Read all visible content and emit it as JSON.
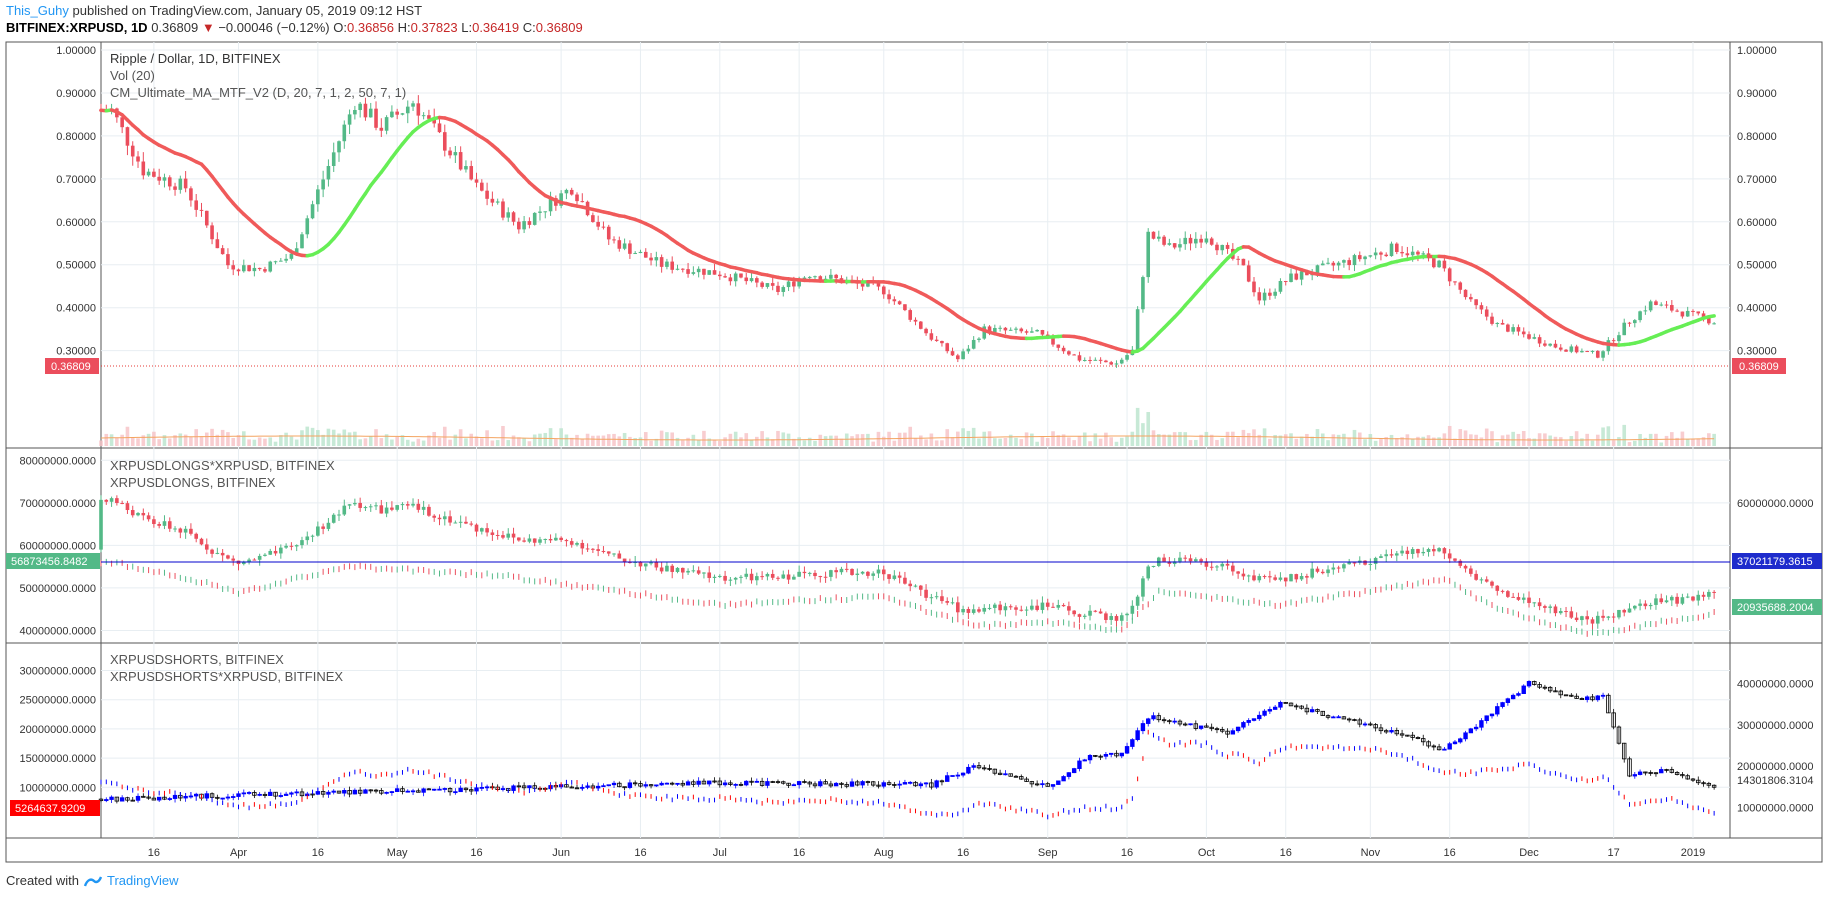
{
  "header": {
    "author": "This_Guhy",
    "published_text": "published on TradingView.com, January 05, 2019 09:12 HST",
    "symbol": "BITFINEX:XRPUSD, 1D",
    "last": "0.36809",
    "change": "−0.00046 (−0.12%)",
    "o_label": "O:",
    "o": "0.36856",
    "h_label": "H:",
    "h": "0.37823",
    "l_label": "L:",
    "l": "0.36419",
    "c_label": "C:",
    "c": "0.36809"
  },
  "footer": {
    "created_with": "Created with",
    "brand": "TradingView"
  },
  "colors": {
    "up": "#53b987",
    "down": "#eb4d5c",
    "ma_up": "#66ee55",
    "ma_down": "#f05a5a",
    "grid": "#e8eef2",
    "border": "#555555",
    "long_line": "#0000cc",
    "short_blue": "#0000ff",
    "short_red": "#ff0000"
  },
  "chart_data": [
    {
      "type": "candlestick",
      "title": "Ripple / Dollar, 1D, BITFINEX",
      "indicators": [
        "Vol (20)",
        "CM_Ultimate_MA_MTF_V2 (D, 20, 7, 1, 2, 50, 7, 1)"
      ],
      "y_ticks": [
        "1.00000",
        "0.90000",
        "0.80000",
        "0.70000",
        "0.60000",
        "0.50000",
        "0.40000",
        "0.30000"
      ],
      "ylim": [
        0.22,
        1.0
      ],
      "price_label": "0.36809",
      "x_ticks": [
        "16",
        "Apr",
        "16",
        "May",
        "16",
        "Jun",
        "16",
        "Jul",
        "16",
        "Aug",
        "16",
        "Sep",
        "16",
        "Oct",
        "16",
        "Nov",
        "16",
        "Dec",
        "17",
        "2019"
      ],
      "close_keypoints": [
        {
          "date": "2018-03-08",
          "close": 0.86
        },
        {
          "date": "2018-03-14",
          "close": 0.72
        },
        {
          "date": "2018-03-22",
          "close": 0.68
        },
        {
          "date": "2018-03-30",
          "close": 0.5
        },
        {
          "date": "2018-04-05",
          "close": 0.49
        },
        {
          "date": "2018-04-11",
          "close": 0.52
        },
        {
          "date": "2018-04-17",
          "close": 0.7
        },
        {
          "date": "2018-04-23",
          "close": 0.88
        },
        {
          "date": "2018-04-28",
          "close": 0.82
        },
        {
          "date": "2018-05-04",
          "close": 0.88
        },
        {
          "date": "2018-05-10",
          "close": 0.78
        },
        {
          "date": "2018-05-16",
          "close": 0.68
        },
        {
          "date": "2018-05-24",
          "close": 0.59
        },
        {
          "date": "2018-06-03",
          "close": 0.68
        },
        {
          "date": "2018-06-10",
          "close": 0.56
        },
        {
          "date": "2018-06-20",
          "close": 0.5
        },
        {
          "date": "2018-07-01",
          "close": 0.48
        },
        {
          "date": "2018-07-12",
          "close": 0.44
        },
        {
          "date": "2018-07-18",
          "close": 0.48
        },
        {
          "date": "2018-08-01",
          "close": 0.44
        },
        {
          "date": "2018-08-10",
          "close": 0.33
        },
        {
          "date": "2018-08-15",
          "close": 0.28
        },
        {
          "date": "2018-08-20",
          "close": 0.35
        },
        {
          "date": "2018-08-30",
          "close": 0.34
        },
        {
          "date": "2018-09-07",
          "close": 0.28
        },
        {
          "date": "2018-09-14",
          "close": 0.27
        },
        {
          "date": "2018-09-17",
          "close": 0.3
        },
        {
          "date": "2018-09-20",
          "close": 0.57
        },
        {
          "date": "2018-09-24",
          "close": 0.54
        },
        {
          "date": "2018-10-01",
          "close": 0.57
        },
        {
          "date": "2018-10-08",
          "close": 0.49
        },
        {
          "date": "2018-10-11",
          "close": 0.42
        },
        {
          "date": "2018-10-17",
          "close": 0.47
        },
        {
          "date": "2018-11-06",
          "close": 0.54
        },
        {
          "date": "2018-11-14",
          "close": 0.5
        },
        {
          "date": "2018-11-20",
          "close": 0.41
        },
        {
          "date": "2018-11-25",
          "close": 0.36
        },
        {
          "date": "2018-12-06",
          "close": 0.31
        },
        {
          "date": "2018-12-14",
          "close": 0.29
        },
        {
          "date": "2018-12-20",
          "close": 0.37
        },
        {
          "date": "2018-12-24",
          "close": 0.41
        },
        {
          "date": "2019-01-05",
          "close": 0.368
        }
      ]
    },
    {
      "type": "candlestick",
      "series": [
        {
          "name": "XRPUSDLONGS*XRPUSD, BITFINEX"
        },
        {
          "name": "XRPUSDLONGS, BITFINEX"
        }
      ],
      "y_ticks_left": [
        "80000000.0000",
        "70000000.0000",
        "60000000.0000",
        "50000000.0000",
        "40000000.0000"
      ],
      "y_ticks_right": [
        "60000000.0000",
        "40000000.0000"
      ],
      "ylim_left": [
        38000000,
        81000000
      ],
      "label_left": "56873456.8482",
      "label_right_1": "37021179.3615",
      "label_right_2": "20935688.2004",
      "longs_keypoints": [
        {
          "date": "2018-03-08",
          "v": 59000000
        },
        {
          "date": "2018-03-20",
          "v": 56000000
        },
        {
          "date": "2018-04-01",
          "v": 52000000
        },
        {
          "date": "2018-04-22",
          "v": 58000000
        },
        {
          "date": "2018-05-20",
          "v": 56000000
        },
        {
          "date": "2018-07-01",
          "v": 49000000
        },
        {
          "date": "2018-08-01",
          "v": 51000000
        },
        {
          "date": "2018-08-18",
          "v": 44000000
        },
        {
          "date": "2018-09-01",
          "v": 45000000
        },
        {
          "date": "2018-09-15",
          "v": 43000000
        },
        {
          "date": "2018-09-22",
          "v": 52000000
        },
        {
          "date": "2018-10-15",
          "v": 49000000
        },
        {
          "date": "2018-11-15",
          "v": 55000000
        },
        {
          "date": "2018-11-25",
          "v": 48000000
        },
        {
          "date": "2018-12-12",
          "v": 42000000
        },
        {
          "date": "2019-01-05",
          "v": 47000000
        }
      ]
    },
    {
      "type": "candlestick",
      "series": [
        {
          "name": "XRPUSDSHORTS, BITFINEX"
        },
        {
          "name": "XRPUSDSHORTS*XRPUSD, BITFINEX"
        }
      ],
      "y_ticks_left": [
        "30000000.0000",
        "25000000.0000",
        "20000000.0000",
        "15000000.0000",
        "10000000.0000"
      ],
      "y_ticks_right": [
        "40000000.0000",
        "30000000.0000",
        "20000000.0000",
        "10000000.0000"
      ],
      "ylim_left": [
        2000000,
        33000000
      ],
      "label_left": "5264637.9209",
      "label_right": "14301806.3104",
      "shorts_keypoints": [
        {
          "date": "2018-03-08",
          "v": 12000000
        },
        {
          "date": "2018-04-15",
          "v": 13500000
        },
        {
          "date": "2018-06-01",
          "v": 15000000
        },
        {
          "date": "2018-07-01",
          "v": 16000000
        },
        {
          "date": "2018-08-10",
          "v": 15500000
        },
        {
          "date": "2018-08-18",
          "v": 20000000
        },
        {
          "date": "2018-09-01",
          "v": 15000000
        },
        {
          "date": "2018-09-08",
          "v": 22000000
        },
        {
          "date": "2018-09-15",
          "v": 23000000
        },
        {
          "date": "2018-09-20",
          "v": 32000000
        },
        {
          "date": "2018-10-05",
          "v": 28000000
        },
        {
          "date": "2018-10-15",
          "v": 35000000
        },
        {
          "date": "2018-11-01",
          "v": 30000000
        },
        {
          "date": "2018-11-15",
          "v": 24000000
        },
        {
          "date": "2018-12-01",
          "v": 40000000
        },
        {
          "date": "2018-12-10",
          "v": 36000000
        },
        {
          "date": "2018-12-15",
          "v": 37000000
        },
        {
          "date": "2018-12-20",
          "v": 18000000
        },
        {
          "date": "2018-12-28",
          "v": 19000000
        },
        {
          "date": "2019-01-05",
          "v": 14300000
        }
      ]
    }
  ]
}
